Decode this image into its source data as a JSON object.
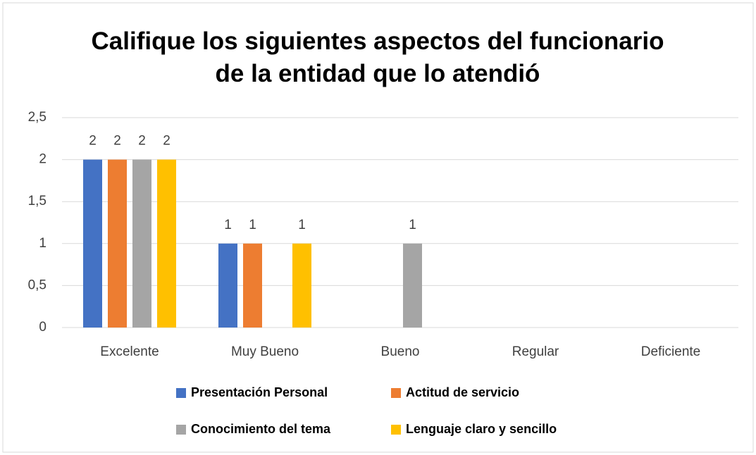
{
  "chart_data": {
    "type": "bar",
    "title": "Califique los siguientes aspectos del funcionario de la entidad que lo atendió",
    "categories": [
      "Excelente",
      "Muy Bueno",
      "Bueno",
      "Regular",
      "Deficiente"
    ],
    "series": [
      {
        "name": "Presentación Personal",
        "color": "#4472c4",
        "values": [
          2,
          1,
          null,
          null,
          null
        ]
      },
      {
        "name": "Actitud de servicio",
        "color": "#ed7d31",
        "values": [
          2,
          1,
          null,
          null,
          null
        ]
      },
      {
        "name": "Conocimiento del tema",
        "color": "#a5a5a5",
        "values": [
          2,
          null,
          1,
          null,
          null
        ]
      },
      {
        "name": "Lenguaje claro y sencillo",
        "color": "#ffc000",
        "values": [
          2,
          1,
          null,
          null,
          null
        ]
      }
    ],
    "ylim": [
      0,
      2.5
    ],
    "yticks": [
      0,
      {
        "value": 0.5,
        "label": "0,5"
      },
      1,
      {
        "value": 1.5,
        "label": "1,5"
      },
      2,
      {
        "value": 2.5,
        "label": "2,5"
      }
    ],
    "grid": true,
    "legend": "bottom"
  }
}
